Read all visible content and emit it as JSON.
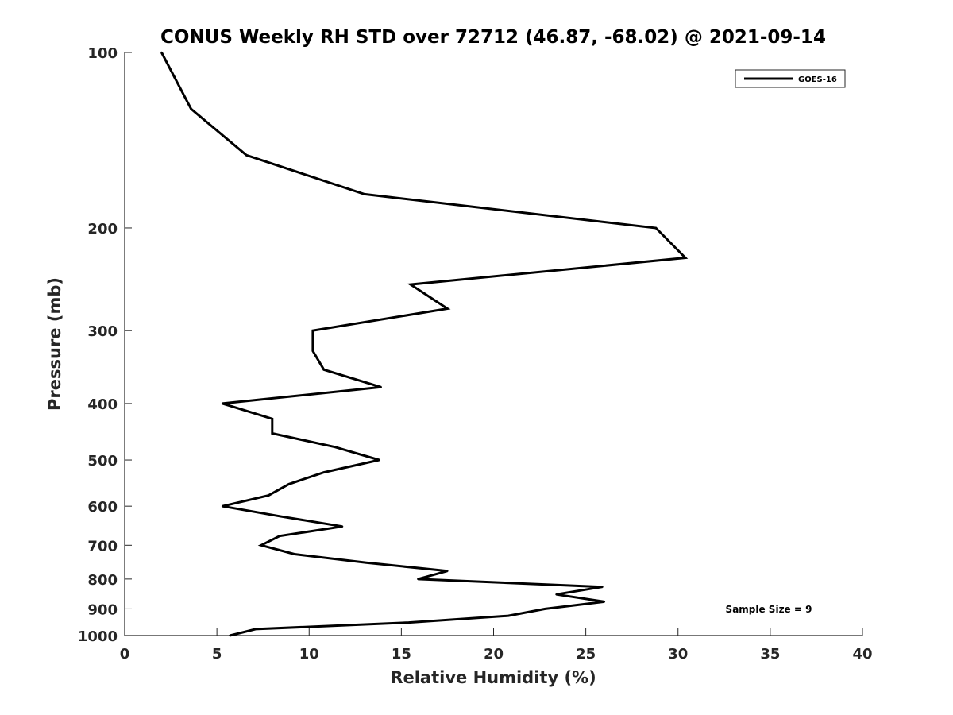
{
  "chart_data": {
    "type": "line",
    "title": "CONUS Weekly RH STD over 72712 (46.87, -68.02) @ 2021-09-14",
    "xlabel": "Relative Humidity (%)",
    "ylabel": "Pressure (mb)",
    "xlim": [
      0,
      40
    ],
    "ylim": [
      1000,
      100
    ],
    "yscale": "log",
    "y_reversed": true,
    "x_ticks": [
      0,
      5,
      10,
      15,
      20,
      25,
      30,
      35,
      40
    ],
    "y_ticks": [
      100,
      200,
      300,
      400,
      500,
      600,
      700,
      800,
      900,
      1000
    ],
    "grid": false,
    "legend_position": "top-right",
    "series": [
      {
        "name": "GOES-16",
        "color": "#000000",
        "points": [
          {
            "x": 2.0,
            "y": 100
          },
          {
            "x": 3.6,
            "y": 125
          },
          {
            "x": 6.6,
            "y": 150
          },
          {
            "x": 13.0,
            "y": 175
          },
          {
            "x": 28.8,
            "y": 200
          },
          {
            "x": 30.4,
            "y": 225
          },
          {
            "x": 15.5,
            "y": 250
          },
          {
            "x": 17.5,
            "y": 275
          },
          {
            "x": 10.2,
            "y": 300
          },
          {
            "x": 10.2,
            "y": 325
          },
          {
            "x": 10.8,
            "y": 350
          },
          {
            "x": 13.9,
            "y": 375
          },
          {
            "x": 5.3,
            "y": 400
          },
          {
            "x": 8.0,
            "y": 425
          },
          {
            "x": 8.0,
            "y": 450
          },
          {
            "x": 11.4,
            "y": 475
          },
          {
            "x": 13.8,
            "y": 500
          },
          {
            "x": 10.8,
            "y": 525
          },
          {
            "x": 8.9,
            "y": 550
          },
          {
            "x": 7.8,
            "y": 575
          },
          {
            "x": 5.3,
            "y": 600
          },
          {
            "x": 8.5,
            "y": 625
          },
          {
            "x": 11.8,
            "y": 650
          },
          {
            "x": 8.4,
            "y": 675
          },
          {
            "x": 7.4,
            "y": 700
          },
          {
            "x": 9.2,
            "y": 725
          },
          {
            "x": 13.1,
            "y": 750
          },
          {
            "x": 17.5,
            "y": 775
          },
          {
            "x": 15.9,
            "y": 800
          },
          {
            "x": 25.9,
            "y": 825
          },
          {
            "x": 23.4,
            "y": 850
          },
          {
            "x": 26.0,
            "y": 875
          },
          {
            "x": 22.8,
            "y": 900
          },
          {
            "x": 20.8,
            "y": 925
          },
          {
            "x": 15.4,
            "y": 950
          },
          {
            "x": 7.1,
            "y": 975
          },
          {
            "x": 5.7,
            "y": 1000
          }
        ]
      }
    ],
    "annotation": "Sample Size = 9"
  }
}
